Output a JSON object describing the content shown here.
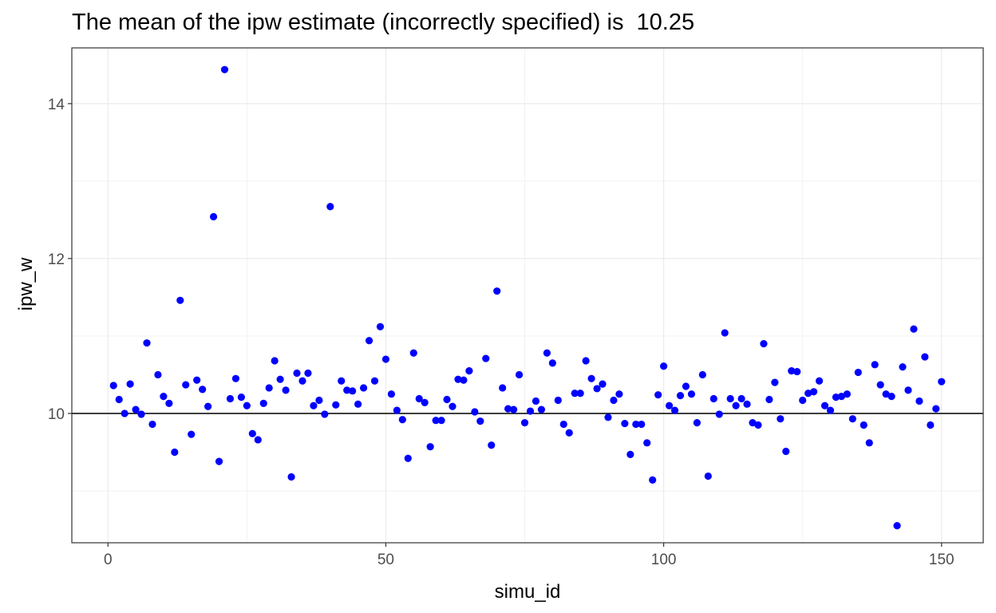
{
  "chart_data": {
    "type": "scatter",
    "title": "The mean of the ipw estimate (incorrectly specified) is  10.25",
    "xlabel": "simu_id",
    "ylabel": "ipw_w",
    "xlim": [
      -6.5,
      157.5
    ],
    "ylim": [
      8.33,
      14.72
    ],
    "x_ticks": [
      0,
      50,
      100,
      150
    ],
    "x_tick_labels": [
      "0",
      "50",
      "100",
      "150"
    ],
    "y_ticks": [
      10,
      12,
      14
    ],
    "y_tick_labels": [
      "10",
      "12",
      "14"
    ],
    "grid": true,
    "reference_line": 10,
    "point_color": "#0000ff",
    "x": [
      1,
      2,
      3,
      4,
      5,
      6,
      7,
      8,
      9,
      10,
      11,
      12,
      13,
      14,
      15,
      16,
      17,
      18,
      19,
      20,
      21,
      22,
      23,
      24,
      25,
      26,
      27,
      28,
      29,
      30,
      31,
      32,
      33,
      34,
      35,
      36,
      37,
      38,
      39,
      40,
      41,
      42,
      43,
      44,
      45,
      46,
      47,
      48,
      49,
      50,
      51,
      52,
      53,
      54,
      55,
      56,
      57,
      58,
      59,
      60,
      61,
      62,
      63,
      64,
      65,
      66,
      67,
      68,
      69,
      70,
      71,
      72,
      73,
      74,
      75,
      76,
      77,
      78,
      79,
      80,
      81,
      82,
      83,
      84,
      85,
      86,
      87,
      88,
      89,
      90,
      91,
      92,
      93,
      94,
      95,
      96,
      97,
      98,
      99,
      100,
      101,
      102,
      103,
      104,
      105,
      106,
      107,
      108,
      109,
      110,
      111,
      112,
      113,
      114,
      115,
      116,
      117,
      118,
      119,
      120,
      121,
      122,
      123,
      124,
      125,
      126,
      127,
      128,
      129,
      130,
      131,
      132,
      133,
      134,
      135,
      136,
      137,
      138,
      139,
      140,
      141,
      142,
      143,
      144,
      145,
      146,
      147,
      148,
      149,
      150
    ],
    "y": [
      10.36,
      10.18,
      10.0,
      10.38,
      10.05,
      9.99,
      10.91,
      9.86,
      10.5,
      10.22,
      10.13,
      9.5,
      11.46,
      10.37,
      9.73,
      10.43,
      10.31,
      10.09,
      12.54,
      9.38,
      14.44,
      10.19,
      10.45,
      10.21,
      10.1,
      9.74,
      9.66,
      10.13,
      10.33,
      10.68,
      10.44,
      10.3,
      9.18,
      10.52,
      10.42,
      10.52,
      10.1,
      10.17,
      9.99,
      12.67,
      10.11,
      10.42,
      10.3,
      10.29,
      10.12,
      10.33,
      10.94,
      10.42,
      11.12,
      10.7,
      10.25,
      10.04,
      9.92,
      9.42,
      10.78,
      10.19,
      10.14,
      9.57,
      9.91,
      9.91,
      10.18,
      10.09,
      10.44,
      10.43,
      10.55,
      10.02,
      9.9,
      10.71,
      9.59,
      11.58,
      10.33,
      10.06,
      10.05,
      10.5,
      9.88,
      10.03,
      10.16,
      10.05,
      10.78,
      10.65,
      10.17,
      9.86,
      9.75,
      10.26,
      10.26,
      10.68,
      10.45,
      10.32,
      10.38,
      9.95,
      10.17,
      10.25,
      9.87,
      9.47,
      9.86,
      9.86,
      9.62,
      9.14,
      10.24,
      10.61,
      10.1,
      10.04,
      10.23,
      10.35,
      10.25,
      9.88,
      10.5,
      9.19,
      10.19,
      9.99,
      11.04,
      10.19,
      10.1,
      10.19,
      10.12,
      9.88,
      9.85,
      10.9,
      10.18,
      10.4,
      9.93,
      9.51,
      10.55,
      10.54,
      10.17,
      10.26,
      10.28,
      10.42,
      10.1,
      10.04,
      10.21,
      10.22,
      10.25,
      9.93,
      10.53,
      9.85,
      9.62,
      10.63,
      10.37,
      10.25,
      10.22,
      8.55,
      10.6,
      10.3,
      11.09,
      10.16,
      10.73,
      9.85,
      10.06,
      10.41
    ]
  }
}
